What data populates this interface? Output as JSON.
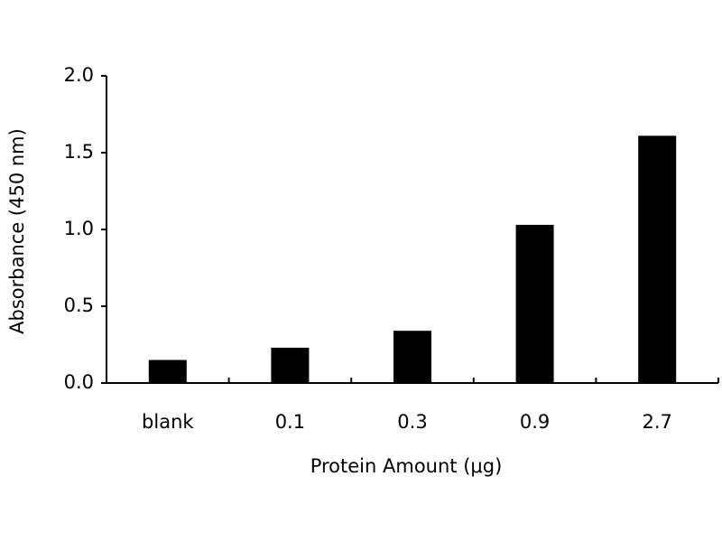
{
  "chart_data": {
    "type": "bar",
    "x_label": "Protein Amount (μg)",
    "y_label": "Absorbance (450 nm)",
    "categories": [
      "blank",
      "0.1",
      "0.3",
      "0.9",
      "2.7"
    ],
    "values": [
      0.15,
      0.23,
      0.34,
      1.03,
      1.61
    ],
    "color": "#000000",
    "ylim": [
      0,
      2
    ],
    "yticks": [
      {
        "value": 0,
        "label": "0.0"
      },
      {
        "value": 0.5,
        "label": "0.5"
      },
      {
        "value": 1,
        "label": "1.0"
      },
      {
        "value": 1.5,
        "label": "1.5"
      },
      {
        "value": 2,
        "label": "2.0"
      }
    ],
    "grid": false
  }
}
